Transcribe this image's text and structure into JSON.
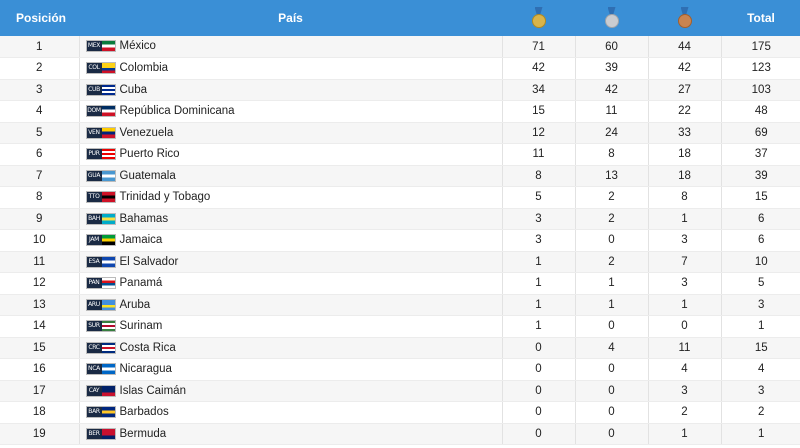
{
  "header": {
    "position_label": "Posición",
    "country_label": "País",
    "gold_icon": "gold-medal-icon",
    "silver_icon": "silver-medal-icon",
    "bronze_icon": "bronze-medal-icon",
    "total_label": "Total"
  },
  "colors": {
    "header_bg": "#3a8fd6",
    "gold": "#d9b44a",
    "silver": "#c9ccd1",
    "bronze": "#c98450"
  },
  "rows": [
    {
      "pos": "1",
      "code": "MEX",
      "country": "México",
      "gold": "71",
      "silver": "60",
      "bronze": "44",
      "total": "175",
      "flag": [
        "#0a7a3c",
        "#ffffff",
        "#ce1126"
      ]
    },
    {
      "pos": "2",
      "code": "COL",
      "country": "Colombia",
      "gold": "42",
      "silver": "39",
      "bronze": "42",
      "total": "123",
      "flag": [
        "#fcd116",
        "#fcd116",
        "#003893",
        "#ce1126"
      ]
    },
    {
      "pos": "3",
      "code": "CUB",
      "country": "Cuba",
      "gold": "34",
      "silver": "42",
      "bronze": "27",
      "total": "103",
      "flag": [
        "#002a8f",
        "#ffffff",
        "#002a8f",
        "#ffffff",
        "#002a8f"
      ]
    },
    {
      "pos": "4",
      "code": "DOM",
      "country": "República Dominicana",
      "gold": "15",
      "silver": "11",
      "bronze": "22",
      "total": "48",
      "flag": [
        "#002d62",
        "#ffffff",
        "#ce1126"
      ]
    },
    {
      "pos": "5",
      "code": "VEN",
      "country": "Venezuela",
      "gold": "12",
      "silver": "24",
      "bronze": "33",
      "total": "69",
      "flag": [
        "#ffcc00",
        "#00247d",
        "#cf142b"
      ]
    },
    {
      "pos": "6",
      "code": "PUR",
      "country": "Puerto Rico",
      "gold": "11",
      "silver": "8",
      "bronze": "18",
      "total": "37",
      "flag": [
        "#ed0000",
        "#ffffff",
        "#ed0000",
        "#ffffff",
        "#ed0000"
      ]
    },
    {
      "pos": "7",
      "code": "GUA",
      "country": "Guatemala",
      "gold": "8",
      "silver": "13",
      "bronze": "18",
      "total": "39",
      "flag": [
        "#4997d0",
        "#ffffff",
        "#4997d0"
      ]
    },
    {
      "pos": "8",
      "code": "TTO",
      "country": "Trinidad y Tobago",
      "gold": "5",
      "silver": "2",
      "bronze": "8",
      "total": "15",
      "flag": [
        "#ce1126",
        "#000000",
        "#ce1126"
      ]
    },
    {
      "pos": "9",
      "code": "BAH",
      "country": "Bahamas",
      "gold": "3",
      "silver": "2",
      "bronze": "1",
      "total": "6",
      "flag": [
        "#00abc9",
        "#fae042",
        "#00abc9"
      ]
    },
    {
      "pos": "10",
      "code": "JAM",
      "country": "Jamaica",
      "gold": "3",
      "silver": "0",
      "bronze": "3",
      "total": "6",
      "flag": [
        "#009b3a",
        "#fed100",
        "#000000"
      ]
    },
    {
      "pos": "11",
      "code": "ESA",
      "country": "El Salvador",
      "gold": "1",
      "silver": "2",
      "bronze": "7",
      "total": "10",
      "flag": [
        "#0f47af",
        "#ffffff",
        "#0f47af"
      ]
    },
    {
      "pos": "12",
      "code": "PAN",
      "country": "Panamá",
      "gold": "1",
      "silver": "1",
      "bronze": "3",
      "total": "5",
      "flag": [
        "#ffffff",
        "#da121a",
        "#005293",
        "#ffffff"
      ]
    },
    {
      "pos": "13",
      "code": "ARU",
      "country": "Aruba",
      "gold": "1",
      "silver": "1",
      "bronze": "1",
      "total": "3",
      "flag": [
        "#418fde",
        "#418fde",
        "#fbe122",
        "#418fde"
      ]
    },
    {
      "pos": "14",
      "code": "SUR",
      "country": "Surinam",
      "gold": "1",
      "silver": "0",
      "bronze": "0",
      "total": "1",
      "flag": [
        "#377e3f",
        "#ffffff",
        "#b40a2d",
        "#ffffff",
        "#377e3f"
      ]
    },
    {
      "pos": "15",
      "code": "CRC",
      "country": "Costa Rica",
      "gold": "0",
      "silver": "4",
      "bronze": "11",
      "total": "15",
      "flag": [
        "#002b7f",
        "#ffffff",
        "#ce1126",
        "#ffffff",
        "#002b7f"
      ]
    },
    {
      "pos": "16",
      "code": "NCA",
      "country": "Nicaragua",
      "gold": "0",
      "silver": "0",
      "bronze": "4",
      "total": "4",
      "flag": [
        "#0067c6",
        "#ffffff",
        "#0067c6"
      ]
    },
    {
      "pos": "17",
      "code": "CAY",
      "country": "Islas Caimán",
      "gold": "0",
      "silver": "0",
      "bronze": "3",
      "total": "3",
      "flag": [
        "#012169",
        "#012169",
        "#c8102e"
      ]
    },
    {
      "pos": "18",
      "code": "BAR",
      "country": "Barbados",
      "gold": "0",
      "silver": "0",
      "bronze": "2",
      "total": "2",
      "flag": [
        "#00267f",
        "#ffc726",
        "#00267f"
      ]
    },
    {
      "pos": "19",
      "code": "BER",
      "country": "Bermuda",
      "gold": "0",
      "silver": "0",
      "bronze": "1",
      "total": "1",
      "flag": [
        "#c8102e",
        "#c8102e",
        "#012169"
      ]
    }
  ]
}
